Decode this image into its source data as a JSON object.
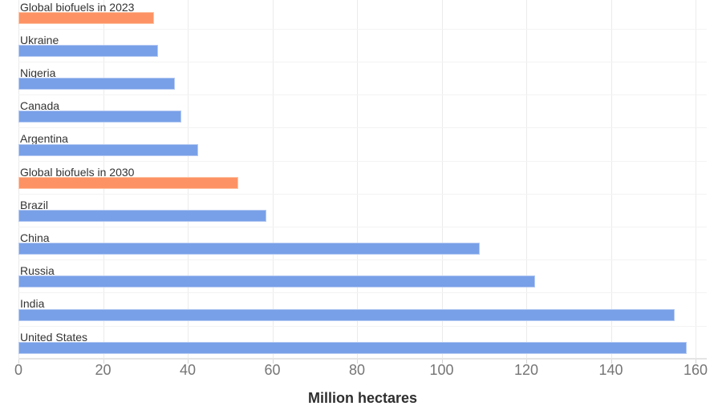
{
  "chart_data": {
    "type": "bar",
    "orientation": "horizontal",
    "title": "",
    "xlabel": "Million hectares",
    "ylabel": "",
    "xlim": [
      0,
      160
    ],
    "x_ticks": [
      0,
      20,
      40,
      60,
      80,
      100,
      120,
      140,
      160
    ],
    "grid": "vertical-light-gray",
    "legend": "none",
    "unit": "million hectares",
    "rows": [
      {
        "label": "Global biofuels in 2023",
        "value": 32,
        "series": "biofuels"
      },
      {
        "label": "Ukraine",
        "value": 33,
        "series": "country"
      },
      {
        "label": "Nigeria",
        "value": 37,
        "series": "country"
      },
      {
        "label": "Canada",
        "value": 38.5,
        "series": "country"
      },
      {
        "label": "Argentina",
        "value": 42.5,
        "series": "country"
      },
      {
        "label": "Global biofuels in 2030",
        "value": 52,
        "series": "biofuels"
      },
      {
        "label": "Brazil",
        "value": 58.5,
        "series": "country"
      },
      {
        "label": "China",
        "value": 109,
        "series": "country"
      },
      {
        "label": "Russia",
        "value": 122,
        "series": "country"
      },
      {
        "label": "India",
        "value": 155,
        "series": "country"
      },
      {
        "label": "United States",
        "value": 158,
        "series": "country"
      }
    ],
    "palette": {
      "country": "#78a0e8",
      "biofuels": "#fd9364"
    },
    "text_colors": {
      "category_label": "#333333",
      "tick_label": "#757575",
      "axis_title": "#2f2f2f"
    }
  }
}
